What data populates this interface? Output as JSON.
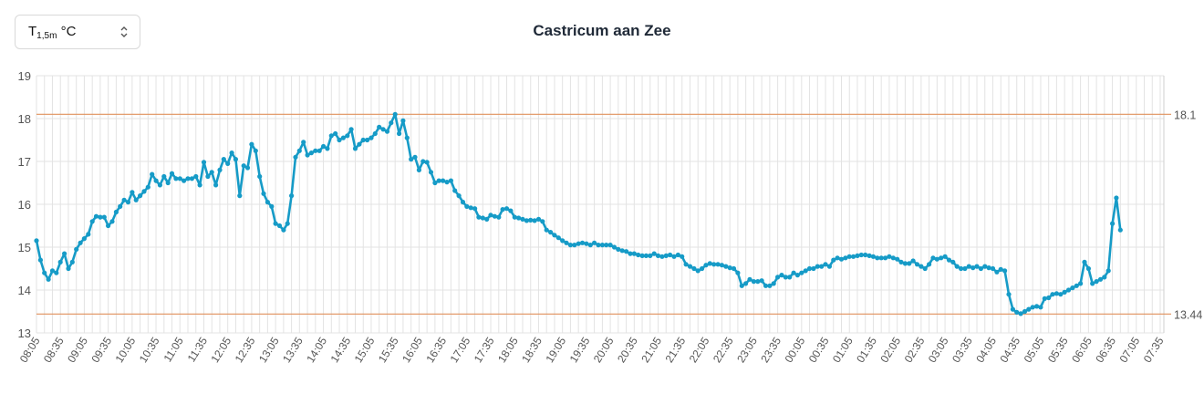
{
  "selector": {
    "label": "T",
    "sub": "1,5m",
    "unit": "°C",
    "icon": "chevron-up-down-icon"
  },
  "colors": {
    "line": "#169bc7",
    "reference": "#e0915c",
    "grid": "#e3e3e3",
    "axis_text": "#555555"
  },
  "chart_data": {
    "type": "line",
    "title": "Castricum aan Zee",
    "xlabel": "",
    "ylabel": "",
    "ylim": [
      13,
      19
    ],
    "yticks": [
      13,
      14,
      15,
      16,
      17,
      18,
      19
    ],
    "grid": true,
    "x_tick_labels": [
      "08:05",
      "08:35",
      "09:05",
      "09:35",
      "10:05",
      "10:35",
      "11:05",
      "11:35",
      "12:05",
      "12:35",
      "13:05",
      "13:35",
      "14:05",
      "14:35",
      "15:05",
      "15:35",
      "16:05",
      "16:35",
      "17:05",
      "17:35",
      "18:05",
      "18:35",
      "19:05",
      "19:35",
      "20:05",
      "20:35",
      "21:05",
      "21:35",
      "22:05",
      "22:35",
      "23:05",
      "23:35",
      "00:05",
      "00:35",
      "01:05",
      "01:35",
      "02:05",
      "02:35",
      "03:05",
      "03:35",
      "04:05",
      "04:35",
      "05:05",
      "05:35",
      "06:05",
      "06:35",
      "07:05",
      "07:35"
    ],
    "reference_lines": [
      {
        "value": 18.1,
        "label": "18.1"
      },
      {
        "value": 13.44,
        "label": "13.44"
      }
    ],
    "x_note": "minutes since 08:05",
    "series": [
      {
        "points": [
          [
            0,
            15.15
          ],
          [
            5,
            14.7
          ],
          [
            10,
            14.4
          ],
          [
            15,
            14.25
          ],
          [
            20,
            14.45
          ],
          [
            25,
            14.4
          ],
          [
            30,
            14.65
          ],
          [
            35,
            14.85
          ],
          [
            40,
            14.5
          ],
          [
            45,
            14.65
          ],
          [
            50,
            14.95
          ],
          [
            55,
            15.1
          ],
          [
            60,
            15.2
          ],
          [
            65,
            15.3
          ],
          [
            70,
            15.6
          ],
          [
            75,
            15.72
          ],
          [
            80,
            15.7
          ],
          [
            85,
            15.7
          ],
          [
            90,
            15.5
          ],
          [
            95,
            15.6
          ],
          [
            100,
            15.82
          ],
          [
            105,
            15.95
          ],
          [
            110,
            16.1
          ],
          [
            115,
            16.05
          ],
          [
            120,
            16.28
          ],
          [
            125,
            16.1
          ],
          [
            130,
            16.2
          ],
          [
            135,
            16.3
          ],
          [
            140,
            16.4
          ],
          [
            145,
            16.7
          ],
          [
            150,
            16.55
          ],
          [
            155,
            16.45
          ],
          [
            160,
            16.65
          ],
          [
            165,
            16.5
          ],
          [
            170,
            16.72
          ],
          [
            175,
            16.6
          ],
          [
            180,
            16.6
          ],
          [
            185,
            16.55
          ],
          [
            190,
            16.6
          ],
          [
            195,
            16.6
          ],
          [
            200,
            16.65
          ],
          [
            205,
            16.45
          ],
          [
            210,
            16.98
          ],
          [
            215,
            16.65
          ],
          [
            220,
            16.75
          ],
          [
            225,
            16.45
          ],
          [
            230,
            16.8
          ],
          [
            235,
            17.05
          ],
          [
            240,
            16.95
          ],
          [
            245,
            17.2
          ],
          [
            250,
            17.05
          ],
          [
            255,
            16.2
          ],
          [
            260,
            16.9
          ],
          [
            265,
            16.85
          ],
          [
            270,
            17.4
          ],
          [
            275,
            17.25
          ],
          [
            280,
            16.65
          ],
          [
            285,
            16.25
          ],
          [
            290,
            16.05
          ],
          [
            295,
            15.95
          ],
          [
            300,
            15.55
          ],
          [
            305,
            15.5
          ],
          [
            310,
            15.4
          ],
          [
            315,
            15.55
          ],
          [
            320,
            16.2
          ],
          [
            325,
            17.1
          ],
          [
            330,
            17.25
          ],
          [
            335,
            17.45
          ],
          [
            340,
            17.15
          ],
          [
            345,
            17.2
          ],
          [
            350,
            17.25
          ],
          [
            355,
            17.25
          ],
          [
            360,
            17.35
          ],
          [
            365,
            17.3
          ],
          [
            370,
            17.6
          ],
          [
            375,
            17.65
          ],
          [
            380,
            17.5
          ],
          [
            385,
            17.55
          ],
          [
            390,
            17.6
          ],
          [
            395,
            17.75
          ],
          [
            400,
            17.3
          ],
          [
            405,
            17.4
          ],
          [
            410,
            17.5
          ],
          [
            415,
            17.5
          ],
          [
            420,
            17.55
          ],
          [
            425,
            17.65
          ],
          [
            430,
            17.8
          ],
          [
            435,
            17.75
          ],
          [
            440,
            17.7
          ],
          [
            445,
            17.9
          ],
          [
            450,
            18.1
          ],
          [
            455,
            17.65
          ],
          [
            460,
            17.95
          ],
          [
            465,
            17.55
          ],
          [
            470,
            17.05
          ],
          [
            475,
            17.1
          ],
          [
            480,
            16.8
          ],
          [
            485,
            17.0
          ],
          [
            490,
            16.98
          ],
          [
            495,
            16.75
          ],
          [
            500,
            16.5
          ],
          [
            505,
            16.55
          ],
          [
            510,
            16.55
          ],
          [
            515,
            16.52
          ],
          [
            520,
            16.55
          ],
          [
            525,
            16.32
          ],
          [
            530,
            16.2
          ],
          [
            535,
            16.05
          ],
          [
            540,
            15.95
          ],
          [
            545,
            15.92
          ],
          [
            550,
            15.9
          ],
          [
            555,
            15.7
          ],
          [
            560,
            15.68
          ],
          [
            565,
            15.65
          ],
          [
            570,
            15.75
          ],
          [
            575,
            15.72
          ],
          [
            580,
            15.7
          ],
          [
            585,
            15.88
          ],
          [
            590,
            15.9
          ],
          [
            595,
            15.85
          ],
          [
            600,
            15.7
          ],
          [
            605,
            15.68
          ],
          [
            610,
            15.65
          ],
          [
            615,
            15.62
          ],
          [
            620,
            15.63
          ],
          [
            625,
            15.62
          ],
          [
            630,
            15.65
          ],
          [
            635,
            15.6
          ],
          [
            640,
            15.4
          ],
          [
            645,
            15.35
          ],
          [
            650,
            15.28
          ],
          [
            655,
            15.22
          ],
          [
            660,
            15.15
          ],
          [
            665,
            15.1
          ],
          [
            670,
            15.05
          ],
          [
            675,
            15.05
          ],
          [
            680,
            15.08
          ],
          [
            685,
            15.1
          ],
          [
            690,
            15.08
          ],
          [
            695,
            15.05
          ],
          [
            700,
            15.1
          ],
          [
            705,
            15.05
          ],
          [
            710,
            15.05
          ],
          [
            715,
            15.05
          ],
          [
            720,
            15.05
          ],
          [
            725,
            15.0
          ],
          [
            730,
            14.95
          ],
          [
            735,
            14.92
          ],
          [
            740,
            14.9
          ],
          [
            745,
            14.85
          ],
          [
            750,
            14.85
          ],
          [
            755,
            14.82
          ],
          [
            760,
            14.8
          ],
          [
            765,
            14.8
          ],
          [
            770,
            14.8
          ],
          [
            775,
            14.85
          ],
          [
            780,
            14.8
          ],
          [
            785,
            14.78
          ],
          [
            790,
            14.8
          ],
          [
            795,
            14.82
          ],
          [
            800,
            14.78
          ],
          [
            805,
            14.82
          ],
          [
            810,
            14.78
          ],
          [
            815,
            14.6
          ],
          [
            820,
            14.55
          ],
          [
            825,
            14.5
          ],
          [
            830,
            14.45
          ],
          [
            835,
            14.5
          ],
          [
            840,
            14.58
          ],
          [
            845,
            14.62
          ],
          [
            850,
            14.6
          ],
          [
            855,
            14.6
          ],
          [
            860,
            14.58
          ],
          [
            865,
            14.55
          ],
          [
            870,
            14.52
          ],
          [
            875,
            14.5
          ],
          [
            880,
            14.4
          ],
          [
            885,
            14.1
          ],
          [
            890,
            14.15
          ],
          [
            895,
            14.25
          ],
          [
            900,
            14.2
          ],
          [
            905,
            14.2
          ],
          [
            910,
            14.22
          ],
          [
            915,
            14.1
          ],
          [
            920,
            14.1
          ],
          [
            925,
            14.15
          ],
          [
            930,
            14.3
          ],
          [
            935,
            14.35
          ],
          [
            940,
            14.3
          ],
          [
            945,
            14.3
          ],
          [
            950,
            14.4
          ],
          [
            955,
            14.35
          ],
          [
            960,
            14.4
          ],
          [
            965,
            14.45
          ],
          [
            970,
            14.5
          ],
          [
            975,
            14.5
          ],
          [
            980,
            14.55
          ],
          [
            985,
            14.55
          ],
          [
            990,
            14.6
          ],
          [
            995,
            14.55
          ],
          [
            1000,
            14.7
          ],
          [
            1005,
            14.75
          ],
          [
            1010,
            14.72
          ],
          [
            1015,
            14.75
          ],
          [
            1020,
            14.78
          ],
          [
            1025,
            14.78
          ],
          [
            1030,
            14.8
          ],
          [
            1035,
            14.82
          ],
          [
            1040,
            14.82
          ],
          [
            1045,
            14.8
          ],
          [
            1050,
            14.78
          ],
          [
            1055,
            14.75
          ],
          [
            1060,
            14.75
          ],
          [
            1065,
            14.75
          ],
          [
            1070,
            14.78
          ],
          [
            1075,
            14.75
          ],
          [
            1080,
            14.72
          ],
          [
            1085,
            14.65
          ],
          [
            1090,
            14.62
          ],
          [
            1095,
            14.62
          ],
          [
            1100,
            14.68
          ],
          [
            1105,
            14.6
          ],
          [
            1110,
            14.55
          ],
          [
            1115,
            14.5
          ],
          [
            1120,
            14.6
          ],
          [
            1125,
            14.75
          ],
          [
            1130,
            14.72
          ],
          [
            1135,
            14.75
          ],
          [
            1140,
            14.78
          ],
          [
            1145,
            14.7
          ],
          [
            1150,
            14.65
          ],
          [
            1155,
            14.55
          ],
          [
            1160,
            14.5
          ],
          [
            1165,
            14.5
          ],
          [
            1170,
            14.55
          ],
          [
            1175,
            14.52
          ],
          [
            1180,
            14.55
          ],
          [
            1185,
            14.5
          ],
          [
            1190,
            14.55
          ],
          [
            1195,
            14.52
          ],
          [
            1200,
            14.5
          ],
          [
            1205,
            14.42
          ],
          [
            1210,
            14.48
          ],
          [
            1215,
            14.45
          ],
          [
            1220,
            13.9
          ],
          [
            1225,
            13.55
          ],
          [
            1230,
            13.48
          ],
          [
            1235,
            13.45
          ],
          [
            1240,
            13.5
          ],
          [
            1245,
            13.55
          ],
          [
            1250,
            13.6
          ],
          [
            1255,
            13.62
          ],
          [
            1260,
            13.6
          ],
          [
            1265,
            13.8
          ],
          [
            1270,
            13.82
          ],
          [
            1275,
            13.9
          ],
          [
            1280,
            13.92
          ],
          [
            1285,
            13.9
          ],
          [
            1290,
            13.95
          ],
          [
            1295,
            14.0
          ],
          [
            1300,
            14.05
          ],
          [
            1305,
            14.1
          ],
          [
            1310,
            14.15
          ],
          [
            1315,
            14.65
          ],
          [
            1320,
            14.5
          ],
          [
            1325,
            14.15
          ],
          [
            1330,
            14.2
          ],
          [
            1335,
            14.25
          ],
          [
            1340,
            14.3
          ],
          [
            1345,
            14.45
          ],
          [
            1350,
            15.55
          ],
          [
            1355,
            16.15
          ],
          [
            1360,
            15.4
          ]
        ]
      }
    ]
  }
}
